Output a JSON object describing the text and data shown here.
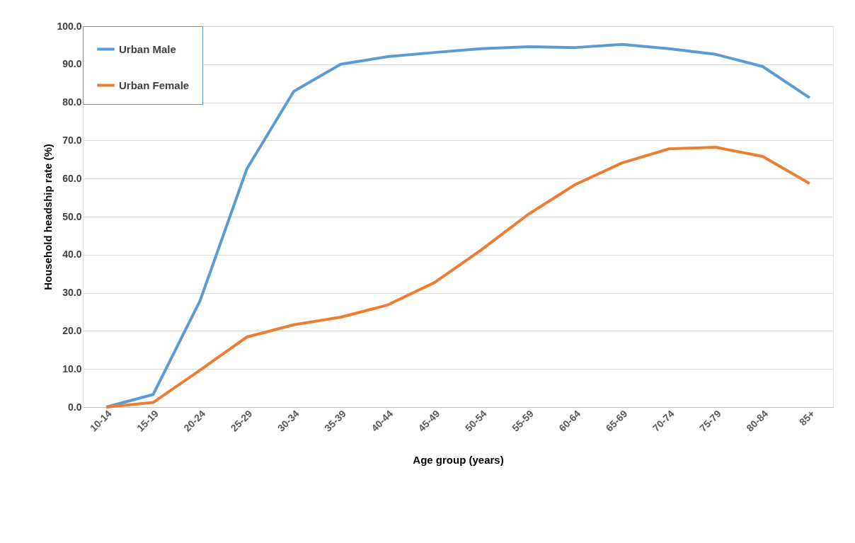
{
  "chart_data": {
    "type": "line",
    "xlabel": "Age group (years)",
    "ylabel": "Household headship rate (%)",
    "categories": [
      "10-14",
      "15-19",
      "20-24",
      "25-29",
      "30-34",
      "35-39",
      "40-44",
      "45-49",
      "50-54",
      "55-59",
      "60-64",
      "65-69",
      "70-74",
      "75-79",
      "80-84",
      "85+"
    ],
    "series": [
      {
        "name": "Urban Male",
        "color": "#5b9bd5",
        "values": [
          0,
          3.3,
          27.9,
          62.6,
          82.9,
          90.0,
          92.0,
          93.1,
          94.1,
          94.6,
          94.4,
          95.2,
          94.1,
          92.6,
          89.4,
          81.2
        ]
      },
      {
        "name": "Urban Female",
        "color": "#ed7d31",
        "values": [
          0,
          1.2,
          9.7,
          18.4,
          21.6,
          23.6,
          26.8,
          32.7,
          41.3,
          50.6,
          58.4,
          64.1,
          67.8,
          68.2,
          65.8,
          58.7
        ]
      }
    ],
    "ylim": [
      0,
      100
    ],
    "yticks": [
      {
        "value": 0,
        "label": "0.0"
      },
      {
        "value": 10,
        "label": "10.0"
      },
      {
        "value": 20,
        "label": "20.0"
      },
      {
        "value": 30,
        "label": "30.0"
      },
      {
        "value": 40,
        "label": "40.0"
      },
      {
        "value": 50,
        "label": "50.0"
      },
      {
        "value": 60,
        "label": "60.0"
      },
      {
        "value": 70,
        "label": "70.0"
      },
      {
        "value": 80,
        "label": "80.0"
      },
      {
        "value": 90,
        "label": "90.0"
      },
      {
        "value": 100,
        "label": "100.0"
      }
    ],
    "grid": "y",
    "legend": "top left",
    "line_style": "solid",
    "marker": "none"
  }
}
